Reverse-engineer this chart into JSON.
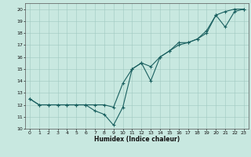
{
  "xlabel": "Humidex (Indice chaleur)",
  "xlim": [
    -0.5,
    23.5
  ],
  "ylim": [
    10,
    20.5
  ],
  "yticks": [
    10,
    11,
    12,
    13,
    14,
    15,
    16,
    17,
    18,
    19,
    20
  ],
  "xticks": [
    0,
    1,
    2,
    3,
    4,
    5,
    6,
    7,
    8,
    9,
    10,
    11,
    12,
    13,
    14,
    15,
    16,
    17,
    18,
    19,
    20,
    21,
    22,
    23
  ],
  "background_color": "#c8e8e0",
  "grid_color": "#a0c8c0",
  "line_color": "#1a6060",
  "line1_x": [
    0,
    1,
    2,
    3,
    4,
    5,
    6,
    7,
    8,
    9,
    10,
    11,
    12,
    13,
    14,
    15,
    16,
    17,
    18,
    19,
    20,
    21,
    22,
    23
  ],
  "line1_y": [
    12.5,
    12.0,
    12.0,
    12.0,
    12.0,
    12.0,
    12.0,
    12.0,
    12.0,
    11.8,
    13.8,
    15.0,
    15.5,
    15.2,
    16.0,
    16.5,
    17.0,
    17.2,
    17.5,
    18.0,
    19.5,
    19.8,
    20.0,
    20.0
  ],
  "line2_x": [
    0,
    1,
    2,
    3,
    4,
    5,
    6,
    7,
    8,
    9,
    10,
    11,
    12,
    13,
    14,
    15,
    16,
    17,
    18,
    19,
    20,
    21,
    22,
    23
  ],
  "line2_y": [
    12.5,
    12.0,
    12.0,
    12.0,
    12.0,
    12.0,
    12.0,
    11.5,
    11.2,
    10.3,
    11.8,
    15.0,
    15.5,
    14.0,
    16.0,
    16.5,
    17.2,
    17.2,
    17.5,
    18.2,
    19.5,
    18.5,
    19.8,
    20.0
  ],
  "tick_fontsize": 4.5,
  "xlabel_fontsize": 5.5,
  "marker_size": 3,
  "linewidth": 0.8
}
